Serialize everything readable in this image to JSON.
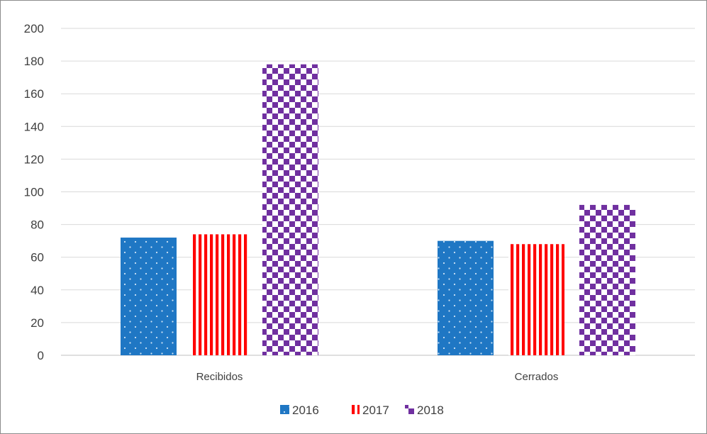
{
  "chart_data": {
    "type": "bar",
    "categories": [
      "Recibidos",
      "Cerrados"
    ],
    "series": [
      {
        "name": "2016",
        "values": [
          72,
          70
        ],
        "color": "#1f77c4",
        "pattern": "dots"
      },
      {
        "name": "2017",
        "values": [
          74,
          68
        ],
        "color": "#ff0000",
        "pattern": "vertical-stripes"
      },
      {
        "name": "2018",
        "values": [
          178,
          92
        ],
        "color": "#7030a0",
        "pattern": "checker"
      }
    ],
    "ylim": [
      0,
      200
    ],
    "yticks": [
      "0",
      "20",
      "40",
      "60",
      "80",
      "100",
      "120",
      "140",
      "160",
      "180",
      "200"
    ],
    "grid": true,
    "legend_position": "bottom"
  }
}
